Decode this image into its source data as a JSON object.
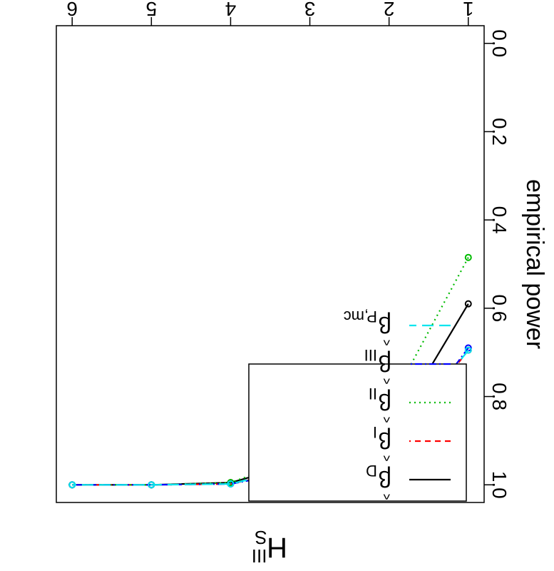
{
  "chart_data": {
    "type": "line",
    "title": "H",
    "title_superscript": "III",
    "title_subscript": "S",
    "xlabel": "",
    "ylabel": "empirical power",
    "x": [
      1,
      2,
      3,
      4,
      5,
      6
    ],
    "xlim": [
      1,
      6
    ],
    "ylim": [
      0,
      1
    ],
    "x_ticks": [
      "1",
      "2",
      "3",
      "4",
      "5",
      "6"
    ],
    "y_ticks": [
      "0.0",
      "0.2",
      "0.4",
      "0.6",
      "0.8",
      "1.0"
    ],
    "grid": false,
    "legend_position": "right",
    "series": [
      {
        "base": "β",
        "hat": "^",
        "sub": "D",
        "color": "#000000",
        "dash": "",
        "values": [
          0.59,
          0.89,
          0.945,
          0.995,
          1.0,
          1.0
        ]
      },
      {
        "base": "β",
        "hat": "^",
        "sub": "I",
        "color": "#ff0000",
        "dash": "8,6",
        "values": [
          0.695,
          0.925,
          0.96,
          0.998,
          1.0,
          1.0
        ]
      },
      {
        "base": "β",
        "hat": "^",
        "sub": "II",
        "color": "#00bb00",
        "dash": "2,5",
        "values": [
          0.485,
          0.82,
          0.93,
          0.995,
          1.0,
          1.0
        ]
      },
      {
        "base": "β",
        "hat": "^",
        "sub": "III",
        "color": "#0000ff",
        "dash": "10,4,2,4",
        "values": [
          0.69,
          0.93,
          0.965,
          0.998,
          1.0,
          1.0
        ]
      },
      {
        "base": "β",
        "hat": "^",
        "sub": "P,mc",
        "color": "#00e5ee",
        "dash": "16,8",
        "values": [
          0.695,
          0.925,
          0.955,
          0.998,
          1.0,
          1.0
        ]
      }
    ]
  }
}
